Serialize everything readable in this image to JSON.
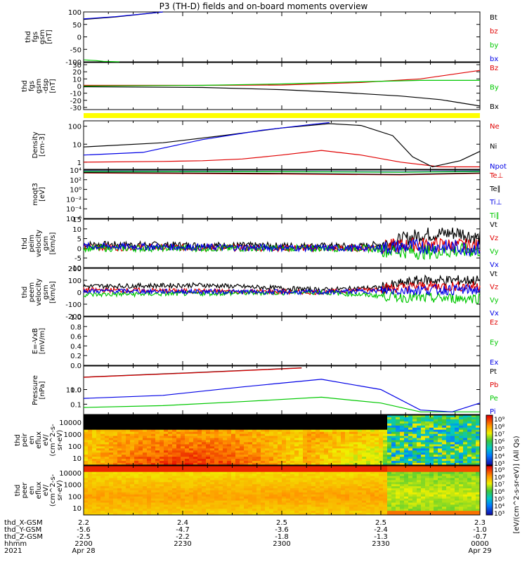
{
  "title": "P3 (TH-D) fields and on-board moments overview",
  "colors": {
    "black": "#000000",
    "red": "#e00000",
    "green": "#00c800",
    "blue": "#0000e6",
    "yellow": "#ffff00"
  },
  "chart_data": [
    {
      "type": "line",
      "ylabel": [
        "thd",
        "fgs",
        "gsm",
        "[nT]"
      ],
      "ylim": [
        -100,
        100
      ],
      "yticks": [
        "100",
        "50",
        "0",
        "-50",
        "-100"
      ],
      "series": [
        {
          "name": "Bt",
          "color": "black",
          "points": [
            [
              0.0,
              70
            ],
            [
              0.08,
              80
            ],
            [
              0.2,
              100
            ]
          ]
        },
        {
          "name": "bz",
          "color": "red",
          "points": []
        },
        {
          "name": "by",
          "color": "green",
          "points": [
            [
              0.0,
              -92
            ],
            [
              0.03,
              -95
            ],
            [
              0.05,
              -98
            ],
            [
              0.09,
              -100
            ]
          ]
        },
        {
          "name": "bx",
          "color": "blue",
          "points": [
            [
              0.0,
              72
            ],
            [
              0.08,
              81
            ],
            [
              0.2,
              100
            ]
          ]
        }
      ]
    },
    {
      "type": "line",
      "ylabel": [
        "thd",
        "fgs",
        "gsm",
        "-dsp",
        "[nT]"
      ],
      "ylim": [
        -33,
        33
      ],
      "yticks": [
        "30",
        "20",
        "10",
        "0",
        "-10",
        "-20",
        "-30"
      ],
      "series": [
        {
          "name": "Bz",
          "color": "red",
          "points": [
            [
              0,
              1
            ],
            [
              0.3,
              1
            ],
            [
              0.5,
              1.5
            ],
            [
              0.7,
              5
            ],
            [
              0.85,
              10
            ],
            [
              1.0,
              22
            ]
          ]
        },
        {
          "name": "By",
          "color": "green",
          "points": [
            [
              0,
              0
            ],
            [
              0.3,
              1
            ],
            [
              0.5,
              3
            ],
            [
              0.7,
              6
            ],
            [
              0.85,
              8
            ],
            [
              1.0,
              8
            ]
          ]
        },
        {
          "name": "Bx",
          "color": "black",
          "points": [
            [
              0,
              -1
            ],
            [
              0.3,
              -2
            ],
            [
              0.5,
              -5
            ],
            [
              0.65,
              -9
            ],
            [
              0.8,
              -14
            ],
            [
              0.9,
              -19
            ],
            [
              1.0,
              -28
            ]
          ]
        }
      ]
    },
    {
      "type": "line",
      "log": true,
      "ylabel": [
        "Density",
        "[cm-3]"
      ],
      "ylim": [
        0.4,
        200
      ],
      "yticks": [
        "100",
        "10",
        "1"
      ],
      "series": [
        {
          "name": "Ne",
          "color": "red",
          "points": [
            [
              0,
              1
            ],
            [
              0.2,
              1.1
            ],
            [
              0.3,
              1.2
            ],
            [
              0.4,
              1.5
            ],
            [
              0.5,
              2.5
            ],
            [
              0.6,
              4.5
            ],
            [
              0.7,
              2.5
            ],
            [
              0.8,
              1
            ],
            [
              0.9,
              0.55
            ],
            [
              1.0,
              0.55
            ]
          ]
        },
        {
          "name": "Ni",
          "color": "black",
          "points": [
            [
              0,
              7
            ],
            [
              0.2,
              12
            ],
            [
              0.35,
              30
            ],
            [
              0.5,
              80
            ],
            [
              0.62,
              140
            ],
            [
              0.7,
              110
            ],
            [
              0.78,
              30
            ],
            [
              0.83,
              2
            ],
            [
              0.88,
              0.55
            ],
            [
              0.95,
              1.2
            ],
            [
              1.0,
              4
            ]
          ]
        },
        {
          "name": "Npot",
          "color": "blue",
          "points": [
            [
              0,
              2.5
            ],
            [
              0.15,
              3.5
            ],
            [
              0.3,
              18
            ],
            [
              0.45,
              60
            ],
            [
              0.58,
              130
            ],
            [
              0.62,
              160
            ]
          ]
        }
      ]
    },
    {
      "type": "line",
      "log": true,
      "ylabel": [
        "moqt3",
        "[eV]"
      ],
      "ylim": [
        1e-06,
        10000
      ],
      "yticks": [
        "10⁴",
        "10²",
        "10⁰",
        "10⁻²",
        "10⁻⁴",
        "10⁻⁶"
      ],
      "series": [
        {
          "name": "Te⊥",
          "color": "red",
          "points": [
            [
              0,
              2500
            ],
            [
              0.5,
              1500
            ],
            [
              0.8,
              1000
            ],
            [
              1.0,
              2000
            ]
          ]
        },
        {
          "name": "Te∥",
          "color": "black",
          "points": [
            [
              0,
              3000
            ],
            [
              0.5,
              2000
            ],
            [
              0.8,
              1200
            ],
            [
              1.0,
              2500
            ]
          ]
        },
        {
          "name": "Ti⊥",
          "color": "blue",
          "points": [
            [
              0,
              6000
            ],
            [
              0.5,
              5000
            ],
            [
              0.8,
              4000
            ],
            [
              1.0,
              6000
            ]
          ]
        },
        {
          "name": "Ti∥",
          "color": "green",
          "points": [
            [
              0,
              5000
            ],
            [
              0.5,
              4500
            ],
            [
              0.8,
              3500
            ],
            [
              1.0,
              5000
            ]
          ]
        }
      ]
    },
    {
      "type": "line",
      "ylabel": [
        "thd",
        "peim",
        "velocity",
        "gsm",
        "[km/s]"
      ],
      "ylim": [
        -10,
        15
      ],
      "yticks": [
        "15",
        "10",
        "5",
        "0",
        "-5",
        "-10"
      ],
      "series": [
        {
          "name": "Vt",
          "color": "black",
          "points": [
            [
              0,
              2
            ],
            [
              0.7,
              1
            ],
            [
              0.78,
              3
            ],
            [
              0.85,
              7
            ],
            [
              0.95,
              8
            ],
            [
              1.0,
              5
            ]
          ]
        },
        {
          "name": "Vz",
          "color": "red",
          "points": [
            [
              0,
              0.5
            ],
            [
              0.7,
              0
            ],
            [
              0.85,
              2
            ],
            [
              1.0,
              1
            ]
          ]
        },
        {
          "name": "Vy",
          "color": "green",
          "points": [
            [
              0,
              0
            ],
            [
              0.7,
              0
            ],
            [
              0.85,
              -2
            ],
            [
              1.0,
              -1
            ]
          ]
        },
        {
          "name": "Vx",
          "color": "blue",
          "points": [
            [
              0,
              1
            ],
            [
              0.7,
              0
            ],
            [
              0.85,
              1
            ],
            [
              1.0,
              0
            ]
          ]
        }
      ]
    },
    {
      "type": "line",
      "ylabel": [
        "thd",
        "peem",
        "velocity",
        "gsm",
        "[km/s]"
      ],
      "ylim": [
        -200,
        200
      ],
      "yticks": [
        "200",
        "100",
        "0",
        "-100",
        "-200"
      ],
      "series": [
        {
          "name": "Vt",
          "color": "black",
          "points": [
            [
              0,
              50
            ],
            [
              0.3,
              60
            ],
            [
              0.6,
              20
            ],
            [
              0.75,
              40
            ],
            [
              0.85,
              100
            ],
            [
              1.0,
              100
            ]
          ]
        },
        {
          "name": "Vz",
          "color": "red",
          "points": [
            [
              0,
              20
            ],
            [
              0.6,
              0
            ],
            [
              0.85,
              50
            ],
            [
              1.0,
              50
            ]
          ]
        },
        {
          "name": "Vy",
          "color": "green",
          "points": [
            [
              0,
              -20
            ],
            [
              0.6,
              0
            ],
            [
              0.85,
              -50
            ],
            [
              1.0,
              -50
            ]
          ]
        },
        {
          "name": "Vx",
          "color": "blue",
          "points": [
            [
              0,
              10
            ],
            [
              0.6,
              0
            ],
            [
              0.85,
              20
            ],
            [
              1.0,
              20
            ]
          ]
        }
      ]
    },
    {
      "type": "line",
      "ylabel": [
        "E=-VxB",
        "[mV/m]"
      ],
      "ylim": [
        0,
        1
      ],
      "yticks": [
        "1.0",
        "0.8",
        "0.6",
        "0.4",
        "0.2",
        "0.0"
      ],
      "series": [
        {
          "name": "Ez",
          "color": "red",
          "points": []
        },
        {
          "name": "Ey",
          "color": "green",
          "points": []
        },
        {
          "name": "Ex",
          "color": "blue",
          "points": []
        }
      ]
    },
    {
      "type": "line",
      "log": true,
      "ylabel": [
        "Pressure",
        "[nPa]"
      ],
      "ylim": [
        0.02,
        40
      ],
      "yticks": [
        "10.0",
        "1.0",
        "0.1"
      ],
      "series": [
        {
          "name": "Pt",
          "color": "black",
          "points": [
            [
              0,
              7
            ],
            [
              0.3,
              15
            ],
            [
              0.55,
              30
            ]
          ]
        },
        {
          "name": "Pb",
          "color": "red",
          "points": [
            [
              0,
              6.8
            ],
            [
              0.3,
              14.5
            ],
            [
              0.55,
              29
            ]
          ]
        },
        {
          "name": "Pe",
          "color": "green",
          "points": [
            [
              0,
              0.06
            ],
            [
              0.2,
              0.08
            ],
            [
              0.4,
              0.15
            ],
            [
              0.6,
              0.3
            ],
            [
              0.75,
              0.12
            ],
            [
              0.85,
              0.03
            ],
            [
              1.0,
              0.03
            ]
          ]
        },
        {
          "name": "Pi",
          "color": "blue",
          "points": [
            [
              0,
              0.25
            ],
            [
              0.2,
              0.4
            ],
            [
              0.4,
              1.5
            ],
            [
              0.6,
              5
            ],
            [
              0.75,
              1
            ],
            [
              0.85,
              0.04
            ],
            [
              0.93,
              0.03
            ],
            [
              1.0,
              0.12
            ]
          ]
        }
      ]
    },
    {
      "type": "heatmap",
      "ylabel": [
        "thd",
        "peir",
        "en",
        "eflux",
        "eV/",
        "(cm^2-s-",
        "sr-eV)"
      ],
      "yticks": [
        "10000",
        "1000",
        "100",
        "10"
      ]
    },
    {
      "type": "heatmap",
      "ylabel": [
        "thd",
        "peer",
        "en",
        "eflux",
        "eV/",
        "(cm^2-s-",
        "sr-eV)"
      ],
      "yticks": [
        "10000",
        "1000",
        "100",
        "10"
      ]
    }
  ],
  "colorbar": {
    "label": "[eV/(cm^2-s-sr-eV)] (All Qs)",
    "ticks": [
      "10⁹",
      "10⁸",
      "10⁷",
      "10⁶",
      "10⁵",
      "10⁴",
      "10³"
    ]
  },
  "ephemeris": {
    "labels": [
      "thd_X-GSM",
      "thd_Y-GSM",
      "thd_Z-GSM",
      "hhmm",
      "2021"
    ],
    "columns": [
      [
        "2.2",
        "-5.6",
        "-2.5",
        "2200",
        "Apr 28"
      ],
      [
        "2.4",
        "-4.7",
        "-2.2",
        "2230",
        ""
      ],
      [
        "2.5",
        "-3.6",
        "-1.8",
        "2300",
        ""
      ],
      [
        "2.5",
        "-2.4",
        "-1.3",
        "2330",
        ""
      ],
      [
        "2.3",
        "-1.0",
        "-0.7",
        "0000",
        "Apr 29"
      ]
    ]
  },
  "yellow_bar": true
}
